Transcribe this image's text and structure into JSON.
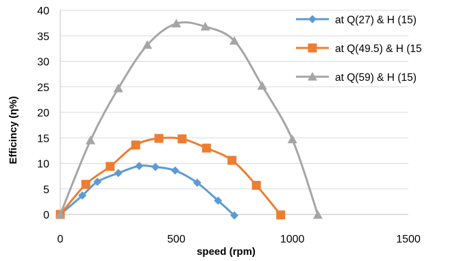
{
  "chart_data": {
    "type": "line",
    "smooth": true,
    "title": "",
    "xlabel": "speed (rpm)",
    "ylabel": "Efficincy (η%)",
    "xlim": [
      0,
      1500
    ],
    "ylim": [
      0,
      40
    ],
    "xticks": [
      0,
      500,
      1000,
      1500
    ],
    "yticks": [
      0,
      5,
      10,
      15,
      20,
      25,
      30,
      35,
      40
    ],
    "grid": {
      "horizontal": true,
      "vertical": false
    },
    "legend": "right",
    "series": [
      {
        "name": "at Q(27) & H (15)",
        "color": "#5B9BD5",
        "marker": "diamond",
        "points": [
          {
            "x": 0,
            "y": 0
          },
          {
            "x": 95,
            "y": 3.7
          },
          {
            "x": 160,
            "y": 6.4
          },
          {
            "x": 250,
            "y": 8.1
          },
          {
            "x": 340,
            "y": 9.5
          },
          {
            "x": 410,
            "y": 9.3
          },
          {
            "x": 495,
            "y": 8.6
          },
          {
            "x": 590,
            "y": 6.2
          },
          {
            "x": 680,
            "y": 2.7
          },
          {
            "x": 750,
            "y": -0.2
          }
        ]
      },
      {
        "name": "at Q(49.5) & H (15",
        "color": "#ED7D31",
        "marker": "square",
        "points": [
          {
            "x": 0,
            "y": 0
          },
          {
            "x": 110,
            "y": 5.9
          },
          {
            "x": 215,
            "y": 9.4
          },
          {
            "x": 325,
            "y": 13.6
          },
          {
            "x": 425,
            "y": 14.9
          },
          {
            "x": 525,
            "y": 14.8
          },
          {
            "x": 630,
            "y": 13.0
          },
          {
            "x": 740,
            "y": 10.6
          },
          {
            "x": 845,
            "y": 5.7
          },
          {
            "x": 950,
            "y": -0.1
          }
        ]
      },
      {
        "name": "at Q(59) & H (15)",
        "color": "#A5A5A5",
        "marker": "triangle",
        "points": [
          {
            "x": 0,
            "y": 0
          },
          {
            "x": 130,
            "y": 14.5
          },
          {
            "x": 250,
            "y": 24.7
          },
          {
            "x": 375,
            "y": 33.2
          },
          {
            "x": 500,
            "y": 37.4
          },
          {
            "x": 625,
            "y": 36.8
          },
          {
            "x": 750,
            "y": 34.0
          },
          {
            "x": 870,
            "y": 25.2
          },
          {
            "x": 1000,
            "y": 14.7
          },
          {
            "x": 1110,
            "y": -0.1
          }
        ]
      }
    ]
  }
}
